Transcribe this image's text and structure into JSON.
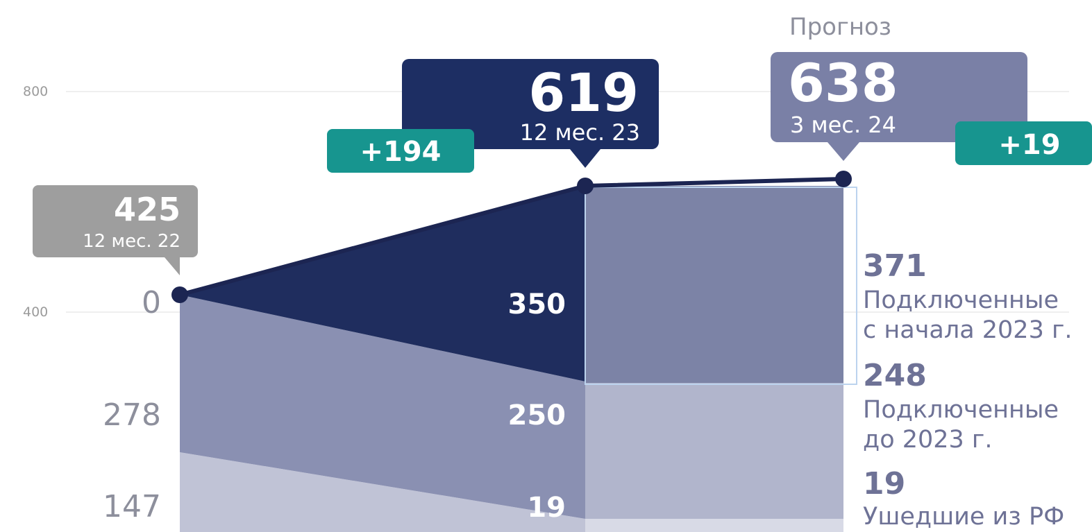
{
  "chart_data": {
    "type": "area",
    "periods": [
      {
        "label": "12 мес. 22",
        "total": 425
      },
      {
        "label": "12 мес. 23",
        "total": 619
      },
      {
        "label": "3 мес. 24",
        "total": 638
      }
    ],
    "y_ticks": [
      "800",
      "400"
    ],
    "y_values_left": [
      "0",
      "278",
      "147"
    ],
    "segment_labels": [
      "350",
      "250",
      "19"
    ],
    "deltas": [
      "+194",
      "+19"
    ],
    "forecast_label": "Прогноз",
    "legend": [
      {
        "value": "371",
        "line1": "Подключенные",
        "line2": "с начала 2023 г."
      },
      {
        "value": "248",
        "line1": "Подключенные",
        "line2": "до 2023 г."
      },
      {
        "value": "19",
        "line1": "Ушедшие из РФ",
        "line2": ""
      }
    ],
    "colors": {
      "new": "#1f2d5e",
      "new_forecast": "#7c83a6",
      "old": "#8a90b2",
      "old_forecast": "#b1b5cc",
      "left": "#c0c3d6",
      "left_forecast": "#d8dae6",
      "line": "#1c2552",
      "delta": "#17958f",
      "callout_past": "#9e9e9e",
      "callout_current": "#1d2e63",
      "callout_forecast": "#7a80a6",
      "axis_text": "#8d8f9c"
    }
  }
}
